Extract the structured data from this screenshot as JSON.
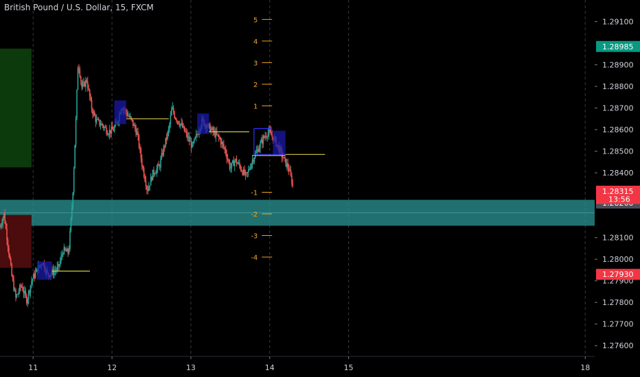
{
  "title": "British Pound / U.S. Dollar, 15, FXCM",
  "colors": {
    "background": "#000000",
    "up": "#26a69a",
    "down": "#ef5350",
    "grid": "#363a45",
    "axis_text": "#d1d4dc",
    "fib": "#f5a623",
    "box": "#1a1aa8",
    "ray": "#d4c94a",
    "zone": "#2a8f8f",
    "green_zone": "#0c3a0c",
    "red_zone": "#4a0c0c"
  },
  "chart_data": {
    "type": "candlestick",
    "symbol": "GBPUSD",
    "timeframe": "15",
    "source": "FXCM",
    "ylim": [
      1.2755,
      1.292
    ],
    "xlim": [
      10.58,
      18.12
    ],
    "grid": true,
    "y_ticks": [
      "1.29100",
      "1.28900",
      "1.28800",
      "1.28700",
      "1.28600",
      "1.28500",
      "1.28400",
      "1.28100",
      "1.28000",
      "1.27900",
      "1.27800",
      "1.27700",
      "1.27600"
    ],
    "x_ticks": [
      {
        "value": 11,
        "label": "11"
      },
      {
        "value": 12,
        "label": "12"
      },
      {
        "value": 13,
        "label": "13"
      },
      {
        "value": 14,
        "label": "14"
      },
      {
        "value": 15,
        "label": "15"
      },
      {
        "value": 18,
        "label": "18"
      }
    ],
    "price_labels": [
      {
        "value": 1.28985,
        "text": "1.28985",
        "bg": "#089981",
        "fg": "#ffffff"
      },
      {
        "value": 1.28315,
        "text": "1.28315",
        "bg": "#f23645",
        "fg": "#ffffff"
      },
      {
        "value": 1.2826,
        "text": "1.28260",
        "bg": "#4a4e59",
        "fg": "#ffffff"
      },
      {
        "value": 1.2793,
        "text": "1.27930",
        "bg": "#f23645",
        "fg": "#ffffff"
      }
    ],
    "countdown": {
      "text": "13:56",
      "value": 1.28278
    },
    "fib_levels": [
      {
        "label": "5",
        "value": 1.2911
      },
      {
        "label": "4",
        "value": 1.2901
      },
      {
        "label": "3",
        "value": 1.2891
      },
      {
        "label": "2",
        "value": 1.2881
      },
      {
        "label": "1",
        "value": 1.2871
      },
      {
        "label": "-1",
        "value": 1.2831
      },
      {
        "label": "-2",
        "value": 1.2821
      },
      {
        "label": "-3",
        "value": 1.2811
      },
      {
        "label": "-4",
        "value": 1.2801
      }
    ],
    "fib_x": [
      13.9,
      14.03
    ],
    "zones": [
      {
        "name": "demand-zone",
        "x0": 10.58,
        "x1": 18.12,
        "y0": 1.28155,
        "y1": 1.28275,
        "color": "#2a8f8f",
        "opacity": 0.78
      },
      {
        "name": "green-zone",
        "x0": 10.58,
        "x1": 10.98,
        "y0": 1.28425,
        "y1": 1.28975,
        "color": "#0c3a0c",
        "opacity": 1
      },
      {
        "name": "red-zone",
        "x0": 10.58,
        "x1": 10.98,
        "y0": 1.2796,
        "y1": 1.28205,
        "color": "#4a0c0c",
        "opacity": 1
      }
    ],
    "boxes": [
      {
        "x0": 11.05,
        "x1": 11.24,
        "y0": 1.27905,
        "y1": 1.2799
      },
      {
        "x0": 12.03,
        "x1": 12.18,
        "y0": 1.28625,
        "y1": 1.28735
      },
      {
        "x0": 13.08,
        "x1": 13.23,
        "y0": 1.2858,
        "y1": 1.28675
      },
      {
        "x0": 14.04,
        "x1": 14.2,
        "y0": 1.28485,
        "y1": 1.28595
      }
    ],
    "rays": [
      {
        "x0": 11.24,
        "x1": 11.72,
        "y": 1.27945
      },
      {
        "x0": 12.18,
        "x1": 12.72,
        "y": 1.2865
      },
      {
        "x0": 13.23,
        "x1": 13.74,
        "y": 1.2859
      },
      {
        "x0": 13.78,
        "x1": 14.2,
        "y": 1.2848
      },
      {
        "x0": 14.2,
        "x1": 14.7,
        "y": 1.28485
      }
    ],
    "segments": [
      {
        "x0": 13.8,
        "x1": 14.03,
        "y": 1.28605,
        "color": "#3030ff"
      },
      {
        "x0": 13.8,
        "x1": 14.2,
        "y": 1.28485,
        "color": "#3030ff"
      },
      {
        "x0": 13.8,
        "x1": 13.8,
        "y0": 1.28485,
        "y1": 1.28605,
        "color": "#3030ff"
      }
    ],
    "path_points": [
      [
        10.58,
        1.2815
      ],
      [
        10.63,
        1.2821
      ],
      [
        10.68,
        1.2807
      ],
      [
        10.73,
        1.2792
      ],
      [
        10.78,
        1.2782
      ],
      [
        10.85,
        1.2788
      ],
      [
        10.92,
        1.2781
      ],
      [
        10.98,
        1.279
      ],
      [
        11.05,
        1.2795
      ],
      [
        11.12,
        1.2799
      ],
      [
        11.18,
        1.2793
      ],
      [
        11.25,
        1.2794
      ],
      [
        11.32,
        1.2796
      ],
      [
        11.38,
        1.2804
      ],
      [
        11.45,
        1.2803
      ],
      [
        11.5,
        1.2828
      ],
      [
        11.54,
        1.2862
      ],
      [
        11.57,
        1.2892
      ],
      [
        11.62,
        1.2879
      ],
      [
        11.68,
        1.2883
      ],
      [
        11.74,
        1.287
      ],
      [
        11.8,
        1.2864
      ],
      [
        11.88,
        1.2862
      ],
      [
        11.95,
        1.2859
      ],
      [
        12.02,
        1.286
      ],
      [
        12.07,
        1.2864
      ],
      [
        12.12,
        1.2871
      ],
      [
        12.18,
        1.2868
      ],
      [
        12.25,
        1.2864
      ],
      [
        12.32,
        1.2858
      ],
      [
        12.38,
        1.2844
      ],
      [
        12.45,
        1.2832
      ],
      [
        12.52,
        1.284
      ],
      [
        12.6,
        1.2843
      ],
      [
        12.66,
        1.2852
      ],
      [
        12.72,
        1.286
      ],
      [
        12.76,
        1.287
      ],
      [
        12.8,
        1.2866
      ],
      [
        12.88,
        1.2862
      ],
      [
        12.95,
        1.2857
      ],
      [
        13.02,
        1.2852
      ],
      [
        13.08,
        1.2858
      ],
      [
        13.14,
        1.2864
      ],
      [
        13.2,
        1.2862
      ],
      [
        13.28,
        1.2859
      ],
      [
        13.36,
        1.2856
      ],
      [
        13.44,
        1.285
      ],
      [
        13.5,
        1.2842
      ],
      [
        13.56,
        1.2846
      ],
      [
        13.62,
        1.2843
      ],
      [
        13.7,
        1.2838
      ],
      [
        13.78,
        1.2846
      ],
      [
        13.85,
        1.2851
      ],
      [
        13.92,
        1.2856
      ],
      [
        13.98,
        1.2859
      ],
      [
        14.05,
        1.2856
      ],
      [
        14.12,
        1.2851
      ],
      [
        14.18,
        1.2846
      ],
      [
        14.24,
        1.2842
      ],
      [
        14.3,
        1.2833
      ]
    ]
  }
}
